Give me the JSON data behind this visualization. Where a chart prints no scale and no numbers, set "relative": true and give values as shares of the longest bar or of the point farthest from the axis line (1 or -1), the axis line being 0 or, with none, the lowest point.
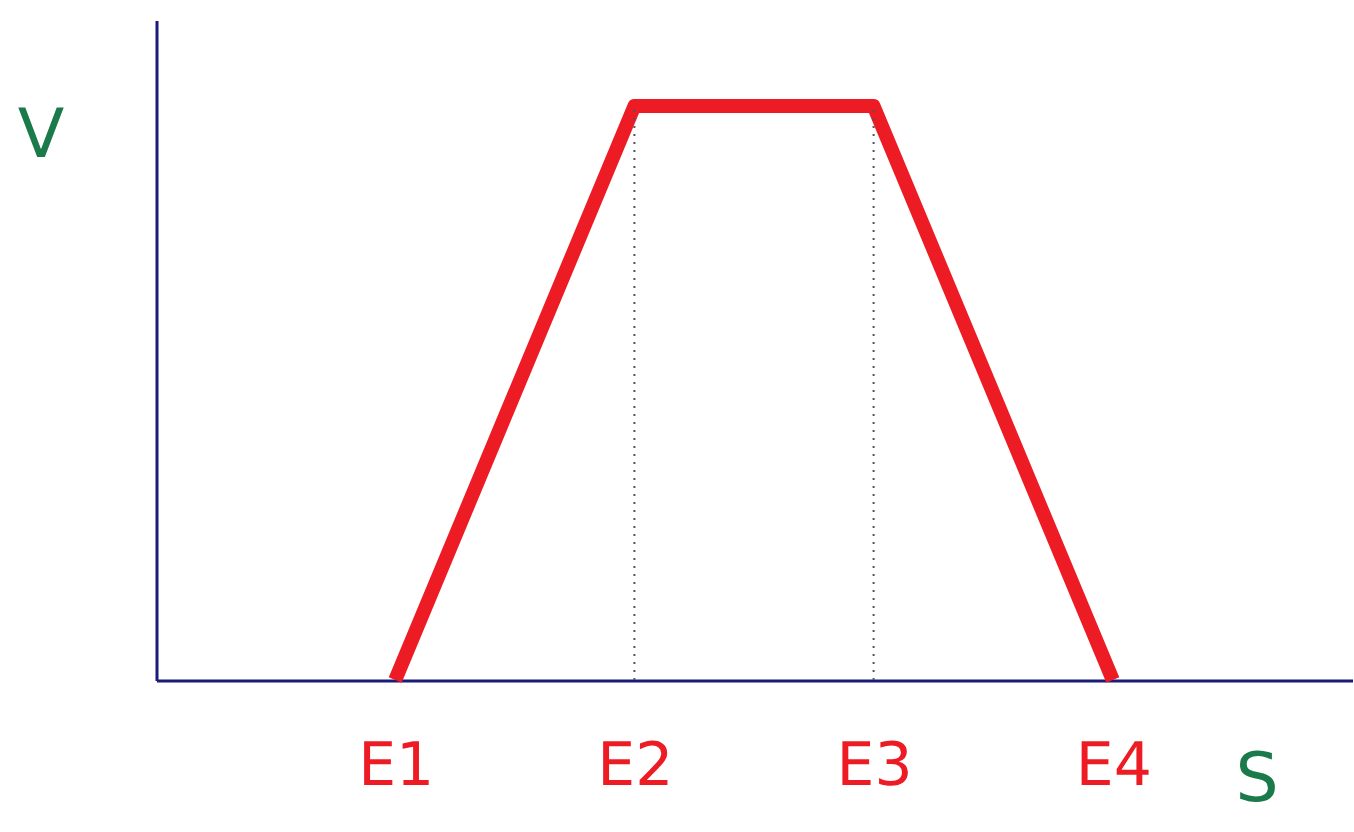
{
  "chart_data": {
    "type": "line",
    "xlabel": "S",
    "ylabel": "V",
    "relative": true,
    "categories": [
      "E1",
      "E2",
      "E3",
      "E4"
    ],
    "series": [
      {
        "color": "#ed1c24",
        "values": [
          0,
          1,
          1,
          0
        ]
      }
    ],
    "ref_lines": [
      {
        "axis": "x",
        "value": "E2",
        "color": "#555555",
        "line_style": "dotted"
      },
      {
        "axis": "x",
        "value": "E3",
        "color": "#555555",
        "line_style": "dotted"
      }
    ],
    "marker": "none",
    "line_style": "solid"
  }
}
